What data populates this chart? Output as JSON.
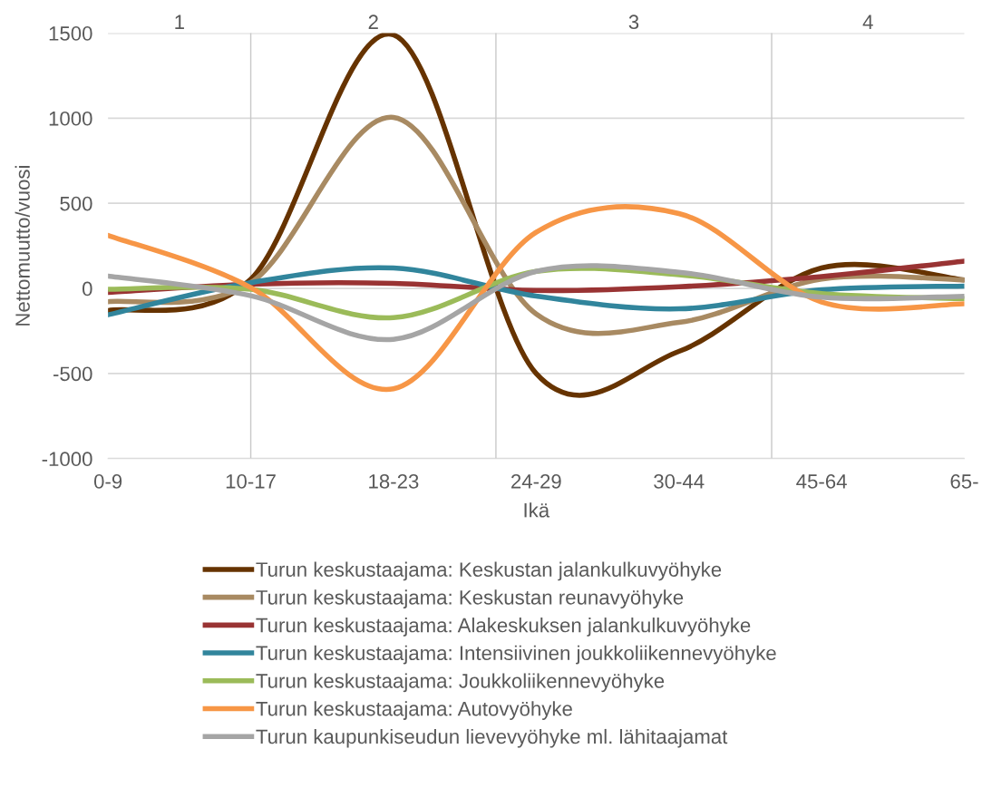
{
  "chart_data": {
    "type": "line",
    "xlabel": "Ikä",
    "ylabel": "Nettomuutto/vuosi",
    "categories": [
      "0-9",
      "10-17",
      "18-23",
      "24-29",
      "30-44",
      "45-64",
      "65-"
    ],
    "ylim": [
      -1000,
      1500
    ],
    "yticks": [
      -1000,
      -500,
      0,
      500,
      1000,
      1500
    ],
    "grid": "y",
    "legend": "bottom",
    "line_style": "solid",
    "annotations": [
      "1",
      "2",
      "3",
      "4"
    ],
    "series": [
      {
        "name": "Turun keskustaajama: Keskustan jalankulkuvyöhyke",
        "color": "#663300",
        "values": [
          -130,
          53,
          1490,
          -500,
          -370,
          120,
          50
        ]
      },
      {
        "name": "Turun keskustaajama: Keskustan reunavyöhyke",
        "color": "#a88a62",
        "values": [
          -78,
          34,
          1005,
          -150,
          -200,
          55,
          50
        ]
      },
      {
        "name": "Turun keskustaajama: Alakeskuksen jalankulkuvyöhyke",
        "color": "#993333",
        "values": [
          -24,
          25,
          30,
          -12,
          10,
          70,
          160
        ]
      },
      {
        "name": "Turun keskustaajama: Intensiivinen joukkoliikennevyöhyke",
        "color": "#31859c",
        "values": [
          -155,
          34,
          120,
          -45,
          -120,
          -8,
          14
        ]
      },
      {
        "name": "Turun keskustaajama: Joukkoliikennevyöhyke",
        "color": "#9bbb59",
        "values": [
          -5,
          -5,
          -172,
          100,
          80,
          -30,
          -60
        ]
      },
      {
        "name": "Turun keskustaajama: Autovyöhyke",
        "color": "#f79646",
        "values": [
          312,
          5,
          -590,
          330,
          440,
          -80,
          -90
        ]
      },
      {
        "name": "Turun kaupunkiseudun lievevyöhyke ml. lähitaajamat",
        "color": "#a5a5a5",
        "values": [
          72,
          -43,
          -299,
          100,
          95,
          -52,
          -46
        ]
      }
    ]
  }
}
